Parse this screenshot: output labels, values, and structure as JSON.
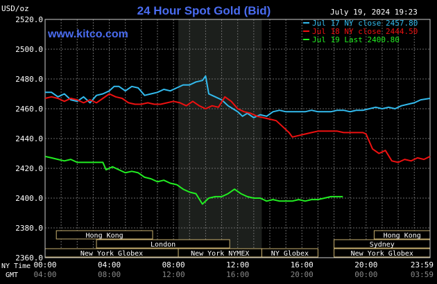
{
  "chart_data": {
    "type": "line",
    "title": "24 Hour Spot Gold (Bid)",
    "timestamp": "July 19, 2024 19:23",
    "source": "www.kitco.com",
    "ylabel": "USD/oz",
    "ylim": [
      2360,
      2520
    ],
    "y_ticks": [
      "2520.0",
      "2500.0",
      "2480.0",
      "2460.0",
      "2440.0",
      "2420.0",
      "2400.0",
      "2380.0",
      "2360.0"
    ],
    "x_hours": [
      0,
      23.983
    ],
    "x_ticks_ny": [
      "00:00",
      "04:00",
      "08:00",
      "12:00",
      "16:00",
      "20:00",
      "23:59"
    ],
    "x_ticks_gmt": [
      "04:00",
      "08:00",
      "12:00",
      "16:00",
      "20:00",
      "00:00",
      "03:59"
    ],
    "x_tick_hours": [
      0,
      4,
      8,
      12,
      16,
      20,
      23.983
    ],
    "x_row_label_ny": "NY Time",
    "x_row_label_gmt": "GMT",
    "grid": true,
    "legend_placement": "top-right",
    "shaded_period_hours": [
      8.3,
      13.5
    ],
    "series": [
      {
        "name": "Jul 17 NY close 2457.80",
        "color": "#33bbee",
        "points": [
          [
            0,
            2471
          ],
          [
            0.4,
            2471
          ],
          [
            0.8,
            2468
          ],
          [
            1.2,
            2470
          ],
          [
            1.6,
            2466
          ],
          [
            2,
            2465
          ],
          [
            2.4,
            2468
          ],
          [
            2.8,
            2464
          ],
          [
            3.2,
            2469
          ],
          [
            3.6,
            2470
          ],
          [
            4,
            2472
          ],
          [
            4.3,
            2475
          ],
          [
            4.6,
            2475
          ],
          [
            5,
            2472
          ],
          [
            5.4,
            2475
          ],
          [
            5.8,
            2474
          ],
          [
            6.2,
            2469
          ],
          [
            6.6,
            2470
          ],
          [
            7,
            2471
          ],
          [
            7.4,
            2473
          ],
          [
            7.8,
            2472
          ],
          [
            8.2,
            2474
          ],
          [
            8.6,
            2476
          ],
          [
            9,
            2476
          ],
          [
            9.4,
            2478
          ],
          [
            9.8,
            2479
          ],
          [
            10,
            2482
          ],
          [
            10.2,
            2470
          ],
          [
            10.6,
            2468
          ],
          [
            11,
            2466
          ],
          [
            11.4,
            2462
          ],
          [
            11.7,
            2460
          ],
          [
            12,
            2458
          ],
          [
            12.3,
            2455
          ],
          [
            12.6,
            2457
          ],
          [
            13,
            2454
          ],
          [
            13.4,
            2456
          ],
          [
            13.8,
            2455
          ],
          [
            14.2,
            2458
          ],
          [
            14.6,
            2459
          ],
          [
            15,
            2458
          ],
          [
            15.4,
            2458
          ],
          [
            15.8,
            2458
          ],
          [
            16.2,
            2458
          ],
          [
            16.6,
            2459
          ],
          [
            17,
            2458
          ],
          [
            17.4,
            2458
          ],
          [
            17.8,
            2458
          ],
          [
            18.2,
            2459
          ],
          [
            18.6,
            2459
          ],
          [
            19,
            2458
          ],
          [
            19.4,
            2459
          ],
          [
            19.8,
            2459
          ],
          [
            20.2,
            2460
          ],
          [
            20.6,
            2461
          ],
          [
            21,
            2460
          ],
          [
            21.4,
            2461
          ],
          [
            21.8,
            2460
          ],
          [
            22.2,
            2462
          ],
          [
            22.6,
            2463
          ],
          [
            23,
            2464
          ],
          [
            23.4,
            2466
          ],
          [
            23.983,
            2467
          ]
        ]
      },
      {
        "name": "Jul 18 NY close 2444.50",
        "color": "#ee1111",
        "points": [
          [
            0,
            2467
          ],
          [
            0.4,
            2468
          ],
          [
            0.8,
            2467
          ],
          [
            1.2,
            2465
          ],
          [
            1.6,
            2467
          ],
          [
            2,
            2466
          ],
          [
            2.4,
            2464
          ],
          [
            2.8,
            2466
          ],
          [
            3.2,
            2464
          ],
          [
            3.6,
            2467
          ],
          [
            4,
            2470
          ],
          [
            4.4,
            2468
          ],
          [
            4.8,
            2467
          ],
          [
            5.2,
            2464
          ],
          [
            5.6,
            2463
          ],
          [
            6,
            2463
          ],
          [
            6.4,
            2464
          ],
          [
            6.8,
            2463
          ],
          [
            7.2,
            2463
          ],
          [
            7.6,
            2464
          ],
          [
            8,
            2465
          ],
          [
            8.4,
            2464
          ],
          [
            8.8,
            2462
          ],
          [
            9.2,
            2465
          ],
          [
            9.6,
            2462
          ],
          [
            10,
            2460
          ],
          [
            10.4,
            2462
          ],
          [
            10.8,
            2461
          ],
          [
            11.2,
            2468
          ],
          [
            11.6,
            2465
          ],
          [
            12,
            2460
          ],
          [
            12.4,
            2458
          ],
          [
            12.8,
            2457
          ],
          [
            13.2,
            2455
          ],
          [
            13.6,
            2454
          ],
          [
            14,
            2453
          ],
          [
            14.4,
            2452
          ],
          [
            14.8,
            2448
          ],
          [
            15.2,
            2444
          ],
          [
            15.4,
            2441
          ],
          [
            15.8,
            2442
          ],
          [
            16.2,
            2443
          ],
          [
            16.6,
            2444
          ],
          [
            17,
            2445
          ],
          [
            17.4,
            2445
          ],
          [
            17.8,
            2445
          ],
          [
            18.2,
            2445
          ],
          [
            18.6,
            2444
          ],
          [
            19,
            2444
          ],
          [
            19.4,
            2444
          ],
          [
            19.8,
            2444
          ],
          [
            20,
            2443
          ],
          [
            20.4,
            2433
          ],
          [
            20.8,
            2430
          ],
          [
            21.2,
            2432
          ],
          [
            21.6,
            2425
          ],
          [
            22,
            2424
          ],
          [
            22.4,
            2426
          ],
          [
            22.8,
            2425
          ],
          [
            23.2,
            2427
          ],
          [
            23.6,
            2426
          ],
          [
            23.983,
            2428
          ]
        ]
      },
      {
        "name": "Jul 19 Last 2400.80",
        "color": "#22ee22",
        "points": [
          [
            0,
            2428
          ],
          [
            0.4,
            2427
          ],
          [
            0.8,
            2426
          ],
          [
            1.2,
            2425
          ],
          [
            1.6,
            2426
          ],
          [
            2,
            2424
          ],
          [
            2.4,
            2424
          ],
          [
            2.8,
            2424
          ],
          [
            3.2,
            2424
          ],
          [
            3.6,
            2424
          ],
          [
            3.8,
            2419
          ],
          [
            4.2,
            2421
          ],
          [
            4.6,
            2419
          ],
          [
            5,
            2417
          ],
          [
            5.4,
            2418
          ],
          [
            5.8,
            2417
          ],
          [
            6.2,
            2414
          ],
          [
            6.6,
            2413
          ],
          [
            7,
            2411
          ],
          [
            7.4,
            2412
          ],
          [
            7.8,
            2410
          ],
          [
            8.2,
            2409
          ],
          [
            8.6,
            2406
          ],
          [
            9,
            2404
          ],
          [
            9.4,
            2403
          ],
          [
            9.8,
            2396
          ],
          [
            10.2,
            2400
          ],
          [
            10.6,
            2401
          ],
          [
            11,
            2401
          ],
          [
            11.4,
            2403
          ],
          [
            11.8,
            2406
          ],
          [
            12.2,
            2403
          ],
          [
            12.6,
            2401
          ],
          [
            13,
            2400
          ],
          [
            13.4,
            2400
          ],
          [
            13.8,
            2398
          ],
          [
            14.2,
            2399
          ],
          [
            14.6,
            2398
          ],
          [
            15,
            2398
          ],
          [
            15.4,
            2398
          ],
          [
            15.8,
            2399
          ],
          [
            16.2,
            2398
          ],
          [
            16.6,
            2399
          ],
          [
            17,
            2399
          ],
          [
            17.4,
            2400
          ],
          [
            17.8,
            2401
          ],
          [
            18.2,
            2401
          ],
          [
            18.55,
            2401
          ]
        ]
      }
    ],
    "sessions": [
      {
        "label": "Hong Kong",
        "start": 0.7,
        "end": 6.7,
        "row": 0
      },
      {
        "label": "Hong Kong",
        "start": 20.5,
        "end": 23.983,
        "row": 0
      },
      {
        "label": "London",
        "start": 3.2,
        "end": 11.5,
        "row": 1
      },
      {
        "label": "Sydney",
        "start": 18.0,
        "end": 23.983,
        "row": 1
      },
      {
        "label": "New York Globex",
        "start": 0,
        "end": 8.3,
        "row": 2
      },
      {
        "label": "New York NYMEX",
        "start": 8.3,
        "end": 13.5,
        "row": 2
      },
      {
        "label": "NY Globex",
        "start": 13.5,
        "end": 17.0,
        "row": 2
      },
      {
        "label": "New York Globex",
        "start": 18.0,
        "end": 23.983,
        "row": 2
      }
    ]
  }
}
